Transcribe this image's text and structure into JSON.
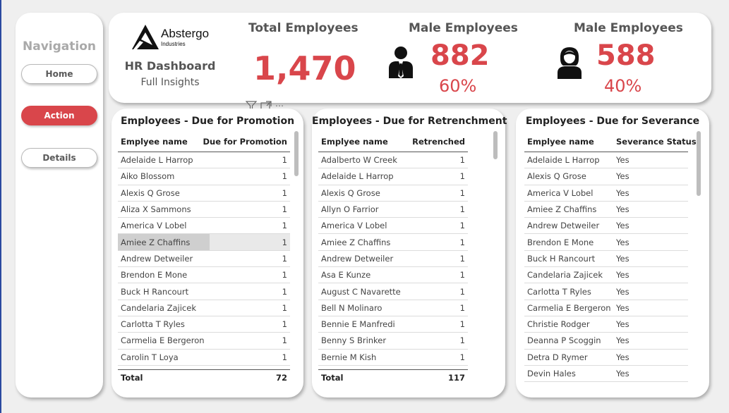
{
  "navigation": {
    "title": "Navigation",
    "buttons": [
      {
        "label": "Home",
        "active": false
      },
      {
        "label": "Action",
        "active": true
      },
      {
        "label": "Details",
        "active": false
      }
    ]
  },
  "header": {
    "logo_name": "Abstergo",
    "logo_sub": "Industries",
    "title": "HR Dashboard",
    "subtitle": "Full Insights",
    "total": {
      "label": "Total Employees",
      "value": "1,470"
    },
    "male": {
      "label": "Male Employees",
      "value": "882",
      "pct": "60%",
      "icon": "male-person-icon"
    },
    "female": {
      "label": "Male Employees",
      "value": "588",
      "pct": "40%",
      "icon": "female-person-icon"
    }
  },
  "colors": {
    "accent": "#d9464b",
    "muted": "#a9a9a9"
  },
  "promotion": {
    "title": "Employees - Due for Promotion",
    "col1": "Emplyee name",
    "col2": "Due for Promotion",
    "rows": [
      [
        "Adelaide L Harrop",
        "1"
      ],
      [
        "Aiko Blossom",
        "1"
      ],
      [
        "Alexis Q Grose",
        "1"
      ],
      [
        "Aliza X Sammons",
        "1"
      ],
      [
        "America V Lobel",
        "1"
      ],
      [
        "Amiee Z Chaffins",
        "1"
      ],
      [
        "Andrew Detweiler",
        "1"
      ],
      [
        "Brendon E Mone",
        "1"
      ],
      [
        "Buck H Rancourt",
        "1"
      ],
      [
        "Candelaria Zajicek",
        "1"
      ],
      [
        "Carlotta T Ryles",
        "1"
      ],
      [
        "Carmelia E Bergeron",
        "1"
      ],
      [
        "Carolin T Loya",
        "1"
      ]
    ],
    "total_label": "Total",
    "total_value": "72"
  },
  "retrenchment": {
    "title": "Employees - Due for Retrenchment",
    "col1": "Emplyee name",
    "col2": "Retrenched",
    "rows": [
      [
        "Adalberto W Creek",
        "1"
      ],
      [
        "Adelaide L Harrop",
        "1"
      ],
      [
        "Alexis Q Grose",
        "1"
      ],
      [
        "Allyn O Farrior",
        "1"
      ],
      [
        "America V Lobel",
        "1"
      ],
      [
        "Amiee Z Chaffins",
        "1"
      ],
      [
        "Andrew Detweiler",
        "1"
      ],
      [
        "Asa E Kunze",
        "1"
      ],
      [
        "August C Navarette",
        "1"
      ],
      [
        "Bell N Molinaro",
        "1"
      ],
      [
        "Bennie E Manfredi",
        "1"
      ],
      [
        "Benny S Brinker",
        "1"
      ],
      [
        "Bernie M Kish",
        "1"
      ]
    ],
    "total_label": "Total",
    "total_value": "117"
  },
  "severance": {
    "title": "Employees - Due for Severance",
    "col1": "Emplyee name",
    "col2": "Severance Status",
    "rows": [
      [
        "Adelaide L Harrop",
        "Yes"
      ],
      [
        "Alexis Q Grose",
        "Yes"
      ],
      [
        "America V Lobel",
        "Yes"
      ],
      [
        "Amiee Z Chaffins",
        "Yes"
      ],
      [
        "Andrew Detweiler",
        "Yes"
      ],
      [
        "Brendon E Mone",
        "Yes"
      ],
      [
        "Buck H Rancourt",
        "Yes"
      ],
      [
        "Candelaria Zajicek",
        "Yes"
      ],
      [
        "Carlotta T Ryles",
        "Yes"
      ],
      [
        "Carmelia E Bergeron",
        "Yes"
      ],
      [
        "Christie Rodger",
        "Yes"
      ],
      [
        "Deanna P Scoggin",
        "Yes"
      ],
      [
        "Detra D Rymer",
        "Yes"
      ],
      [
        "Devin Hales",
        "Yes"
      ]
    ]
  }
}
